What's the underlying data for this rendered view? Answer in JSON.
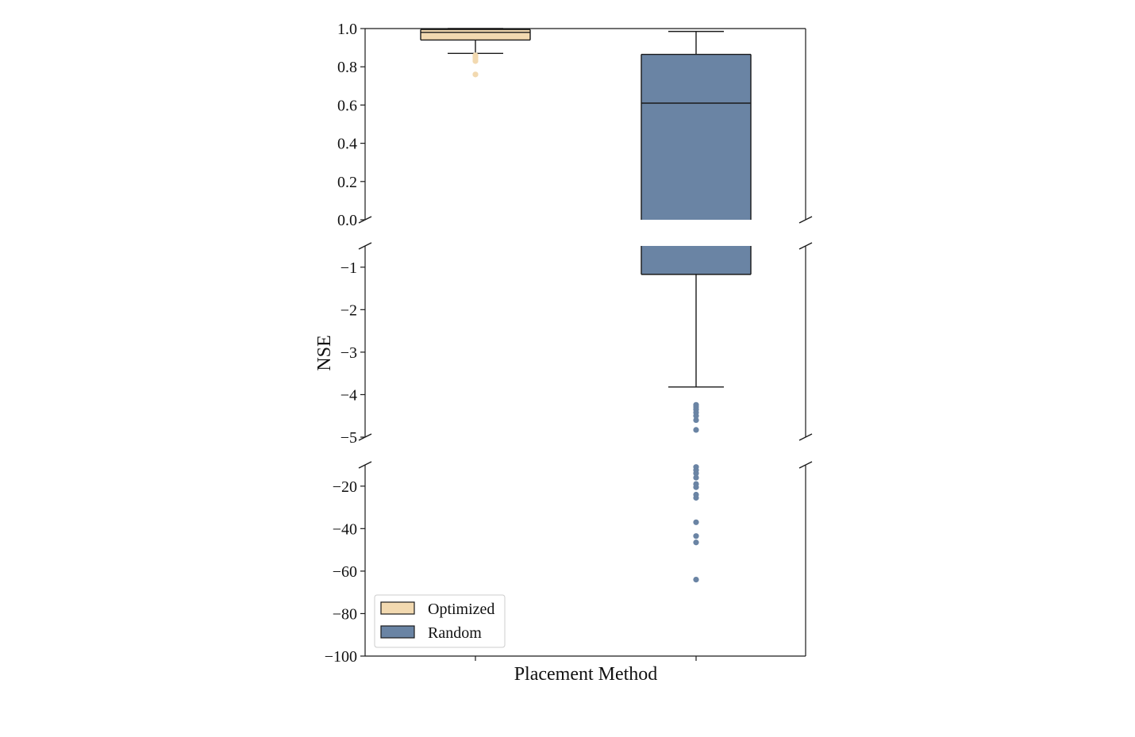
{
  "chart_data": {
    "type": "box",
    "xlabel": "Placement Method",
    "ylabel": "NSE",
    "grid": false,
    "legend": {
      "placement": "lower-left",
      "entries": [
        "Optimized",
        "Random"
      ]
    },
    "broken_axis": [
      {
        "ylim": [
          0.0,
          1.0
        ],
        "ticks": [
          0.0,
          0.2,
          0.4,
          0.6,
          0.8,
          1.0
        ],
        "tick_labels": [
          "0.0",
          "0.2",
          "0.4",
          "0.6",
          "0.8",
          "1.0"
        ]
      },
      {
        "ylim": [
          -5.0,
          -0.5
        ],
        "ticks": [
          -1,
          -2,
          -3,
          -4,
          -5
        ],
        "tick_labels": [
          "−1",
          "−2",
          "−3",
          "−4",
          "−5"
        ]
      },
      {
        "ylim": [
          -100,
          -10
        ],
        "ticks": [
          -20,
          -40,
          -60,
          -80,
          -100
        ],
        "tick_labels": [
          "−20",
          "−40",
          "−60",
          "−80",
          "−100"
        ]
      }
    ],
    "series": [
      {
        "name": "Optimized",
        "color": "#f2d9b0",
        "whisker_low": 0.87,
        "q1": 0.94,
        "median": 0.98,
        "q3": 0.995,
        "whisker_high": 1.0,
        "outliers": [
          0.86,
          0.85,
          0.84,
          0.83,
          0.76
        ]
      },
      {
        "name": "Random",
        "color": "#6a84a4",
        "whisker_low": -3.82,
        "q1": -1.17,
        "median": 0.61,
        "q3": 0.865,
        "whisker_high": 0.985,
        "outliers": [
          -4.24,
          -4.29,
          -4.35,
          -4.42,
          -4.5,
          -4.6,
          -4.83,
          -11,
          -12.5,
          -14,
          -16,
          -19,
          -20.5,
          -24,
          -25.5,
          -37,
          -43.5,
          -46.5,
          -64
        ]
      }
    ]
  }
}
